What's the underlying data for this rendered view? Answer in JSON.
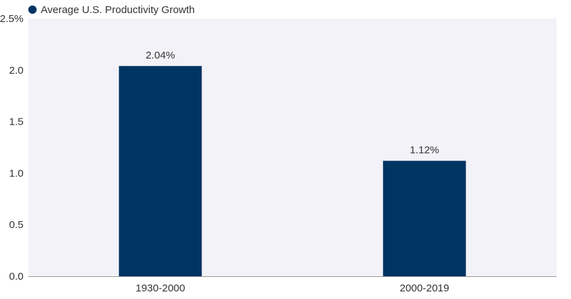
{
  "chart_data": {
    "type": "bar",
    "categories": [
      "1930-2000",
      "2000-2019"
    ],
    "series": [
      {
        "name": "Average U.S. Productivity Growth",
        "values": [
          2.04,
          1.12
        ],
        "data_labels": [
          "2.04%",
          "1.12%"
        ],
        "color": "#003462"
      }
    ],
    "ylim": [
      0,
      2.5
    ],
    "yticks": [
      0,
      0.5,
      1,
      1.5,
      2,
      2.5
    ],
    "ytick_labels": [
      "0.0",
      "0.5",
      "1.0",
      "1.5",
      "2.0",
      "2.5%"
    ],
    "title": "",
    "xlabel": "",
    "ylabel": "",
    "legend": "top-left",
    "grid": false,
    "plot_background": "#f2f2f8",
    "axis_color": "#999999"
  }
}
